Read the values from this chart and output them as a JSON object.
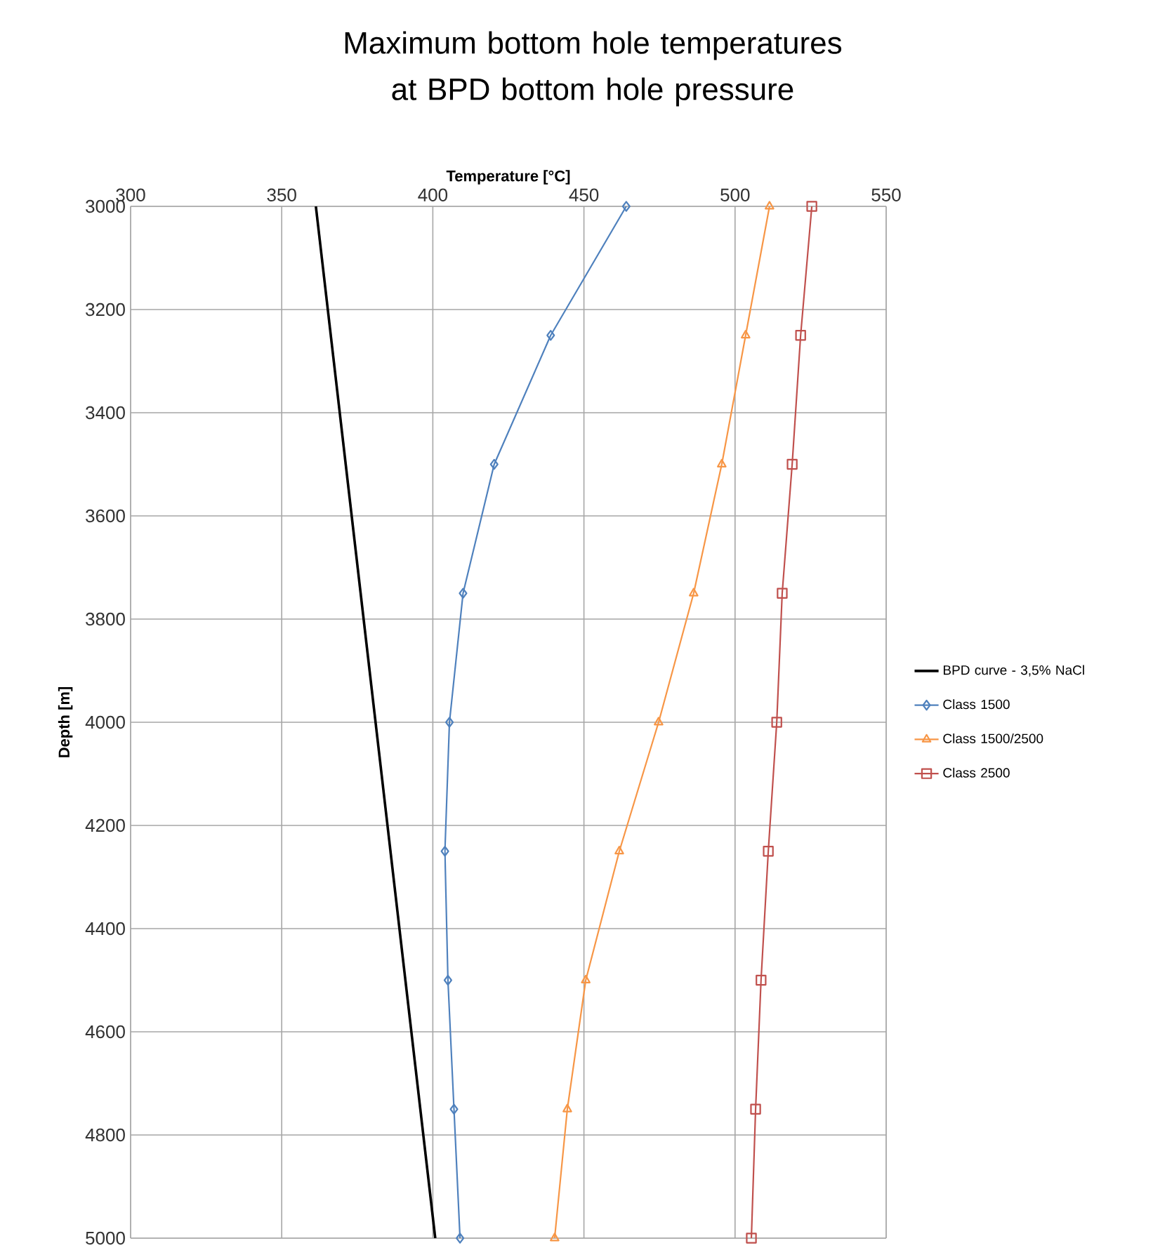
{
  "chart_data": {
    "type": "line",
    "title": "Maximum bottom hole temperatures at BPD bottom hole pressure",
    "xlabel": "Temperature [°C]",
    "ylabel": "Depth [m]",
    "xlim": [
      300,
      550
    ],
    "xticks": [
      300,
      350,
      400,
      450,
      500,
      550
    ],
    "ylim": [
      5000,
      3000
    ],
    "yticks": [
      3000,
      3200,
      3400,
      3600,
      3800,
      4000,
      4200,
      4400,
      4600,
      4800,
      5000
    ],
    "grid": true,
    "legend": "right",
    "line_style": "solid",
    "series": [
      {
        "name": "BPD curve - 3,5% NaCl",
        "color": "#000000",
        "marker": "none",
        "x": [
          361.3,
          400.8
        ],
        "values": [
          3000,
          5000
        ]
      },
      {
        "name": "Class 1500",
        "color": "#4f81bd",
        "marker": "diamond",
        "x": [
          464,
          439,
          420.3,
          410,
          405.5,
          404,
          405,
          407,
          409
        ],
        "values": [
          3000,
          3250,
          3500,
          3750,
          4000,
          4250,
          4500,
          4750,
          5000
        ]
      },
      {
        "name": "Class 1500/2500",
        "color": "#f79646",
        "marker": "triangle",
        "x": [
          511.4,
          503.5,
          495.6,
          486.3,
          474.7,
          461.7,
          450.6,
          444.5,
          440.3
        ],
        "values": [
          3000,
          3250,
          3500,
          3750,
          4000,
          4250,
          4500,
          4750,
          5000
        ]
      },
      {
        "name": "Class 2500",
        "color": "#c0504d",
        "marker": "square",
        "x": [
          525.4,
          521.7,
          518.9,
          515.6,
          513.8,
          511,
          508.6,
          506.8,
          505.4
        ],
        "values": [
          3000,
          3250,
          3500,
          3750,
          4000,
          4250,
          4500,
          4750,
          5000
        ]
      }
    ]
  }
}
